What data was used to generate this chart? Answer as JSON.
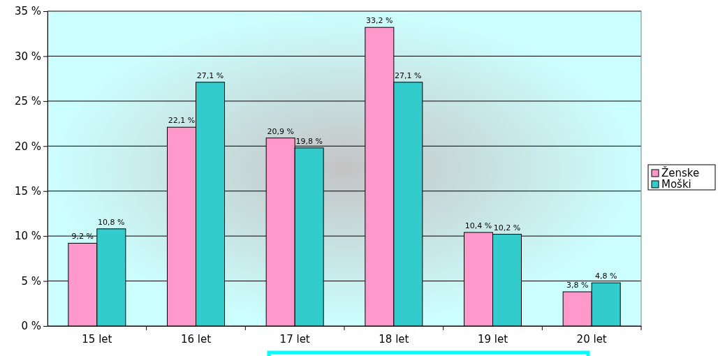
{
  "chart_data": {
    "type": "bar",
    "categories": [
      "15 let",
      "16 let",
      "17 let",
      "18 let",
      "19 let",
      "20 let"
    ],
    "series": [
      {
        "name": "Ženske",
        "color": "#ff99cc",
        "values": [
          9.2,
          22.1,
          20.9,
          33.2,
          10.4,
          3.8
        ],
        "value_labels": [
          "9,2 %",
          "22,1 %",
          "20,9 %",
          "33,2 %",
          "10,4 %",
          "3,8 %"
        ]
      },
      {
        "name": "Moški",
        "color": "#33cccc",
        "values": [
          10.8,
          27.1,
          19.8,
          27.1,
          10.2,
          4.8
        ],
        "value_labels": [
          "10,8 %",
          "27,1 %",
          "19,8 %",
          "27,1 %",
          "10,2 %",
          "4,8 %"
        ]
      }
    ],
    "ylim": [
      0,
      35
    ],
    "yticks": [
      {
        "value": 0,
        "label": "0 %"
      },
      {
        "value": 5,
        "label": "5 %"
      },
      {
        "value": 10,
        "label": "10 %"
      },
      {
        "value": 15,
        "label": "15 %"
      },
      {
        "value": 20,
        "label": "20 %"
      },
      {
        "value": 25,
        "label": "25 %"
      },
      {
        "value": 30,
        "label": "30 %"
      },
      {
        "value": 35,
        "label": "35 %"
      }
    ],
    "grid": "y",
    "legend": "right"
  }
}
